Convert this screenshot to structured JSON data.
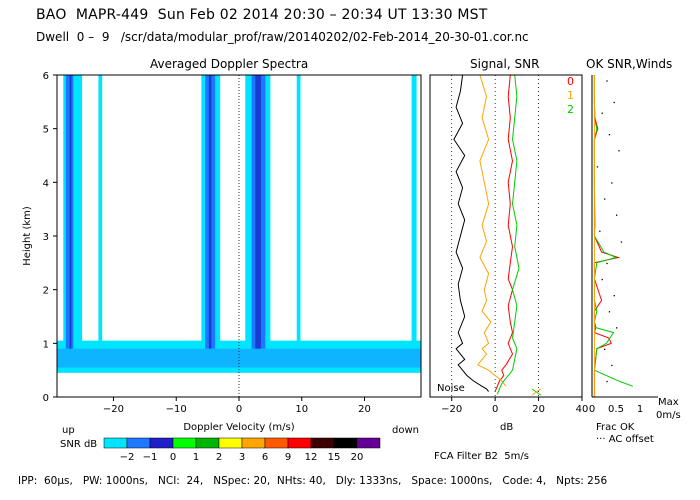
{
  "header": {
    "line1": "BAO  MAPR-449  Sun Feb 02 2014 20:30 – 20:34 UT 13:30 MST",
    "line2": "Dwell  0 –  9   /scr/data/modular_prof/raw/20140202/02-Feb-2014_20-30-01.cor.nc"
  },
  "panels": {
    "spectra_title": "Averaged Doppler Spectra",
    "signal_title": "Signal, SNR",
    "ok_title": "OK SNR,Winds",
    "noise_label": "Noise",
    "db_label": "dB",
    "frac_ok_label": "Frac OK",
    "ac_offset_label": "··· AC offset",
    "max_label": "Max",
    "max_speed_label": "0m/s",
    "beam_labels": [
      "0",
      "1",
      "2"
    ],
    "up_label": "up",
    "down_label": "down",
    "snr_db_label": "SNR dB",
    "filter_label": "FCA Filter B2  5m/s"
  },
  "colors": {
    "background": "#ffffff",
    "cyan": "#00e5ff",
    "blue_mid": "#1e78ff",
    "blue_dark": "#1a3cd0",
    "beam0": "#ff0000",
    "beam1": "#ffa500",
    "beam2": "#00cc00"
  },
  "colorbar": {
    "labels": [
      "−2",
      "−1",
      "0",
      "1",
      "2",
      "3",
      "6",
      "9",
      "12",
      "15",
      "20"
    ],
    "colors": [
      "#00e5ff",
      "#1e78ff",
      "#2020c8",
      "#00ff00",
      "#00b400",
      "#ffff00",
      "#ffa500",
      "#ff5a00",
      "#ff0000",
      "#3c0000",
      "#000000",
      "#640096"
    ]
  },
  "footer": {
    "text": "IPP:  60µs,   PW: 1000ns,   NCI:  24,   NSpec: 20,  NHts: 40,   Dly: 1333ns,   Space: 1000ns,   Code: 4,   Npts: 256"
  },
  "chart_data": [
    {
      "type": "heatmap",
      "title": "Averaged Doppler Spectra",
      "xlabel": "Doppler Velocity (m/s)",
      "ylabel": "Height (km)",
      "xlim": [
        -29,
        29
      ],
      "ylim": [
        0,
        6
      ],
      "xticks": [
        -20,
        -10,
        0,
        10,
        20
      ],
      "yticks": [
        0,
        1,
        2,
        3,
        4,
        5,
        6
      ],
      "vertical_bands": [
        {
          "x": [
            -28.0,
            -25.0
          ],
          "level": "cyan"
        },
        {
          "x": [
            -27.6,
            -26.4
          ],
          "level": "blue_mid"
        },
        {
          "x": [
            -27.0,
            -26.7
          ],
          "level": "blue_dark"
        },
        {
          "x": [
            -22.4,
            -21.8
          ],
          "level": "cyan"
        },
        {
          "x": [
            -6.0,
            -3.0
          ],
          "level": "cyan"
        },
        {
          "x": [
            -5.4,
            -3.8
          ],
          "level": "blue_mid"
        },
        {
          "x": [
            -4.8,
            -4.4
          ],
          "level": "blue_dark"
        },
        {
          "x": [
            1.0,
            5.0
          ],
          "level": "cyan"
        },
        {
          "x": [
            2.0,
            4.2
          ],
          "level": "blue_mid"
        },
        {
          "x": [
            2.6,
            3.5
          ],
          "level": "blue_dark"
        },
        {
          "x": [
            9.2,
            9.8
          ],
          "level": "cyan"
        },
        {
          "x": [
            27.5,
            28.3
          ],
          "level": "cyan"
        }
      ],
      "horizontal_band": {
        "y": [
          0.45,
          1.05
        ],
        "core_y": [
          0.55,
          0.9
        ],
        "level": "cyan"
      }
    },
    {
      "type": "line",
      "title": "Signal, SNR",
      "xlabel": "dB",
      "xlim": [
        -30,
        40
      ],
      "ylim": [
        0,
        6
      ],
      "xticks": [
        -20,
        0,
        20,
        40
      ],
      "series": [
        {
          "name": "",
          "color": "#000000",
          "x": [
            -15,
            -16,
            -18,
            -15,
            -19,
            -14,
            -18,
            -15,
            -17,
            -14,
            -16,
            -18,
            -15,
            -17,
            -16,
            -14,
            -17,
            -15,
            -18,
            -16,
            -14,
            -17,
            -15,
            -13,
            -10,
            -6,
            -4,
            -3
          ],
          "y": [
            6,
            5.7,
            5.4,
            5.1,
            4.8,
            4.5,
            4.2,
            3.9,
            3.6,
            3.3,
            3.0,
            2.7,
            2.4,
            2.1,
            1.8,
            1.5,
            1.2,
            1.0,
            0.9,
            0.8,
            0.7,
            0.6,
            0.5,
            0.4,
            0.3,
            0.2,
            0.15,
            0.1
          ]
        },
        {
          "name": "0",
          "color": "#ff0000",
          "x": [
            7,
            6,
            7,
            6,
            8,
            6,
            7,
            6,
            8,
            7,
            6,
            8,
            6,
            7,
            8,
            6,
            7,
            8,
            5,
            3,
            4,
            2,
            1,
            0
          ],
          "y": [
            6,
            5.6,
            5.2,
            4.8,
            4.4,
            4.0,
            3.6,
            3.2,
            2.8,
            2.5,
            2.2,
            2.0,
            1.7,
            1.4,
            1.2,
            1.0,
            0.9,
            0.8,
            0.6,
            0.5,
            0.4,
            0.3,
            0.2,
            0.1
          ]
        },
        {
          "name": "1",
          "color": "#ffa500",
          "x": [
            -7,
            -4,
            -6,
            -3,
            -7,
            -5,
            -3,
            -6,
            -4,
            -7,
            -3,
            -5,
            -4,
            -6,
            -2,
            -5,
            -3,
            -6,
            -4,
            -8,
            -3,
            0,
            3,
            5
          ],
          "y": [
            6,
            5.6,
            5.2,
            4.8,
            4.4,
            4.0,
            3.6,
            3.2,
            2.9,
            2.6,
            2.3,
            2.0,
            1.8,
            1.6,
            1.4,
            1.2,
            1.0,
            0.9,
            0.8,
            0.6,
            0.5,
            0.4,
            0.3,
            0.2
          ]
        },
        {
          "name": "2",
          "color": "#00cc00",
          "x": [
            9,
            10,
            9,
            8,
            10,
            9,
            8,
            10,
            9,
            11,
            8,
            10,
            9,
            8,
            10,
            9,
            8,
            5,
            3,
            2,
            1
          ],
          "y": [
            6,
            5.6,
            5.2,
            4.8,
            4.4,
            4.0,
            3.6,
            3.2,
            2.8,
            2.4,
            2.0,
            1.7,
            1.4,
            1.1,
            0.9,
            0.7,
            0.5,
            0.35,
            0.25,
            0.15,
            0.05
          ]
        }
      ]
    },
    {
      "type": "line",
      "title": "OK SNR,Winds",
      "xlabel": "Frac OK",
      "xlim": [
        0,
        1
      ],
      "ylim": [
        0,
        6
      ],
      "xticks": [
        "0",
        "0.5",
        "1"
      ],
      "series": [
        {
          "name": "0",
          "color": "#ff0000",
          "x": [
            0.05,
            0.05,
            0.06,
            0.12,
            0.05,
            0.05,
            0.06,
            0.05,
            0.2,
            0.55,
            0.05,
            0.05,
            0.2,
            0.05,
            0.05,
            0.08,
            0.05,
            0.35,
            0.4,
            0.1,
            0.05,
            0.05
          ],
          "y": [
            6,
            5.5,
            5.2,
            5.0,
            4.8,
            4.0,
            3.2,
            3.0,
            2.7,
            2.6,
            2.5,
            2.2,
            1.8,
            1.6,
            1.4,
            1.3,
            1.2,
            1.1,
            1.0,
            0.9,
            0.5,
            0
          ]
        },
        {
          "name": "2",
          "color": "#00cc00",
          "x": [
            0.05,
            0.05,
            0.05,
            0.1,
            0.05,
            0.05,
            0.05,
            0.25,
            0.5,
            0.1,
            0.05,
            0.05,
            0.1,
            0.05,
            0.05,
            0.45,
            0.3,
            0.1,
            0.05,
            0.55,
            0.85
          ],
          "y": [
            6,
            5.5,
            5.2,
            5.0,
            4.8,
            4.0,
            3.0,
            2.7,
            2.6,
            2.5,
            2.2,
            1.8,
            1.6,
            1.4,
            1.3,
            1.2,
            1.0,
            0.9,
            0.5,
            0.3,
            0.2
          ]
        },
        {
          "name": "1",
          "color": "#ffa500",
          "x": [
            0.05,
            0.05,
            0.05,
            0.05
          ],
          "y": [
            6,
            3,
            1,
            0
          ]
        }
      ],
      "dots": {
        "x": [
          0.3,
          0.45,
          0.2,
          0.35,
          0.55,
          0.1,
          0.4,
          0.25,
          0.5,
          0.15,
          0.6,
          0.3,
          0.2,
          0.45,
          0.35,
          0.5,
          0.25,
          0.4,
          0.3
        ],
        "y": [
          5.9,
          5.5,
          5.3,
          4.9,
          4.6,
          4.3,
          4.0,
          3.7,
          3.4,
          3.1,
          2.9,
          2.5,
          2.2,
          1.9,
          1.6,
          1.3,
          0.9,
          0.6,
          0.3
        ]
      }
    }
  ]
}
